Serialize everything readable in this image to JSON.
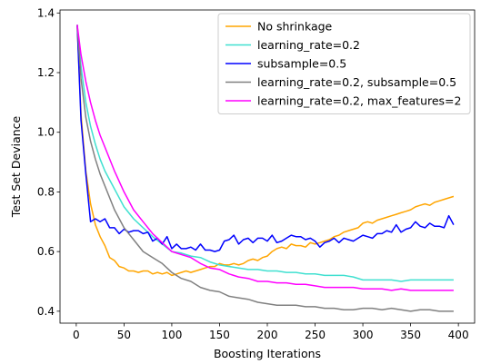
{
  "chart_data": {
    "type": "line",
    "xlabel": "Boosting Iterations",
    "ylabel": "Test Set Deviance",
    "xlim": [
      -17,
      417
    ],
    "ylim": [
      0.36,
      1.41
    ],
    "xticks": [
      0,
      50,
      100,
      150,
      200,
      250,
      300,
      350,
      400
    ],
    "yticks": [
      0.4,
      0.6,
      0.8,
      1.0,
      1.2,
      1.4
    ],
    "ytick_labels": [
      "0.4",
      "0.6",
      "0.8",
      "1.0",
      "1.2",
      "1.4"
    ],
    "grid": false,
    "legend_position": "top-right",
    "series": [
      {
        "name": "No shrinkage",
        "color": "#ffa500",
        "x": [
          1,
          5,
          10,
          15,
          20,
          25,
          30,
          35,
          40,
          45,
          50,
          55,
          60,
          65,
          70,
          75,
          80,
          85,
          90,
          95,
          100,
          105,
          110,
          115,
          120,
          125,
          130,
          135,
          140,
          145,
          150,
          155,
          160,
          165,
          170,
          175,
          180,
          185,
          190,
          195,
          200,
          205,
          210,
          215,
          220,
          225,
          230,
          235,
          240,
          245,
          250,
          255,
          260,
          265,
          270,
          275,
          280,
          285,
          290,
          295,
          300,
          305,
          310,
          315,
          320,
          325,
          330,
          335,
          340,
          345,
          350,
          355,
          360,
          365,
          370,
          375,
          380,
          385,
          390,
          395
        ],
        "values": [
          1.36,
          1.06,
          0.87,
          0.76,
          0.69,
          0.65,
          0.62,
          0.58,
          0.57,
          0.55,
          0.545,
          0.535,
          0.535,
          0.53,
          0.535,
          0.535,
          0.525,
          0.53,
          0.525,
          0.53,
          0.52,
          0.525,
          0.53,
          0.535,
          0.53,
          0.535,
          0.54,
          0.545,
          0.55,
          0.55,
          0.56,
          0.555,
          0.555,
          0.56,
          0.555,
          0.56,
          0.57,
          0.575,
          0.57,
          0.58,
          0.585,
          0.6,
          0.61,
          0.615,
          0.61,
          0.625,
          0.62,
          0.62,
          0.615,
          0.63,
          0.625,
          0.63,
          0.635,
          0.64,
          0.65,
          0.655,
          0.665,
          0.67,
          0.675,
          0.68,
          0.695,
          0.7,
          0.695,
          0.705,
          0.71,
          0.715,
          0.72,
          0.725,
          0.73,
          0.735,
          0.74,
          0.75,
          0.755,
          0.76,
          0.755,
          0.765,
          0.77,
          0.775,
          0.78,
          0.785
        ]
      },
      {
        "name": "learning_rate=0.2",
        "color": "#40e0d0",
        "x": [
          1,
          5,
          10,
          15,
          20,
          25,
          30,
          40,
          50,
          60,
          70,
          80,
          90,
          100,
          110,
          120,
          130,
          140,
          150,
          160,
          170,
          180,
          190,
          200,
          210,
          220,
          230,
          240,
          250,
          260,
          270,
          280,
          290,
          300,
          310,
          320,
          330,
          340,
          350,
          360,
          370,
          380,
          390,
          395
        ],
        "values": [
          1.36,
          1.22,
          1.1,
          1.02,
          0.96,
          0.91,
          0.87,
          0.81,
          0.75,
          0.71,
          0.68,
          0.65,
          0.625,
          0.6,
          0.595,
          0.585,
          0.58,
          0.565,
          0.555,
          0.55,
          0.545,
          0.54,
          0.54,
          0.535,
          0.535,
          0.53,
          0.53,
          0.525,
          0.525,
          0.52,
          0.52,
          0.52,
          0.515,
          0.505,
          0.505,
          0.505,
          0.505,
          0.5,
          0.505,
          0.505,
          0.505,
          0.505,
          0.505,
          0.505
        ]
      },
      {
        "name": "subsample=0.5",
        "color": "#0000ff",
        "x": [
          1,
          5,
          10,
          15,
          20,
          25,
          30,
          35,
          40,
          45,
          50,
          55,
          60,
          65,
          70,
          75,
          80,
          85,
          90,
          95,
          100,
          105,
          110,
          115,
          120,
          125,
          130,
          135,
          140,
          145,
          150,
          155,
          160,
          165,
          170,
          175,
          180,
          185,
          190,
          195,
          200,
          205,
          210,
          215,
          220,
          225,
          230,
          235,
          240,
          245,
          250,
          255,
          260,
          265,
          270,
          275,
          280,
          285,
          290,
          295,
          300,
          305,
          310,
          315,
          320,
          325,
          330,
          335,
          340,
          345,
          350,
          355,
          360,
          365,
          370,
          375,
          380,
          385,
          390,
          395
        ],
        "values": [
          1.36,
          1.04,
          0.86,
          0.7,
          0.71,
          0.7,
          0.71,
          0.68,
          0.68,
          0.66,
          0.675,
          0.665,
          0.67,
          0.67,
          0.66,
          0.665,
          0.635,
          0.645,
          0.625,
          0.65,
          0.61,
          0.625,
          0.61,
          0.61,
          0.615,
          0.605,
          0.625,
          0.605,
          0.605,
          0.6,
          0.605,
          0.635,
          0.64,
          0.655,
          0.625,
          0.64,
          0.645,
          0.63,
          0.645,
          0.645,
          0.635,
          0.655,
          0.63,
          0.635,
          0.645,
          0.655,
          0.65,
          0.65,
          0.64,
          0.645,
          0.635,
          0.615,
          0.63,
          0.635,
          0.645,
          0.63,
          0.645,
          0.64,
          0.635,
          0.645,
          0.655,
          0.65,
          0.645,
          0.66,
          0.66,
          0.67,
          0.665,
          0.69,
          0.665,
          0.675,
          0.68,
          0.7,
          0.685,
          0.68,
          0.695,
          0.685,
          0.685,
          0.68,
          0.72,
          0.69
        ]
      },
      {
        "name": "learning_rate=0.2, subsample=0.5",
        "color": "#808080",
        "x": [
          1,
          5,
          10,
          15,
          20,
          25,
          30,
          40,
          50,
          60,
          70,
          80,
          90,
          100,
          110,
          120,
          130,
          140,
          150,
          160,
          170,
          180,
          190,
          200,
          210,
          220,
          230,
          240,
          250,
          260,
          270,
          280,
          290,
          300,
          310,
          320,
          330,
          340,
          350,
          360,
          370,
          380,
          390,
          395
        ],
        "values": [
          1.36,
          1.18,
          1.05,
          0.97,
          0.91,
          0.86,
          0.82,
          0.74,
          0.68,
          0.64,
          0.6,
          0.58,
          0.56,
          0.53,
          0.51,
          0.5,
          0.48,
          0.47,
          0.465,
          0.45,
          0.445,
          0.44,
          0.43,
          0.425,
          0.42,
          0.42,
          0.42,
          0.415,
          0.415,
          0.41,
          0.41,
          0.405,
          0.405,
          0.41,
          0.41,
          0.405,
          0.41,
          0.405,
          0.4,
          0.405,
          0.405,
          0.4,
          0.4,
          0.4
        ]
      },
      {
        "name": "learning_rate=0.2, max_features=2",
        "color": "#ff00ff",
        "x": [
          1,
          5,
          10,
          15,
          20,
          25,
          30,
          40,
          50,
          60,
          70,
          80,
          90,
          100,
          110,
          120,
          130,
          140,
          150,
          160,
          170,
          180,
          190,
          200,
          210,
          220,
          230,
          240,
          250,
          260,
          270,
          280,
          290,
          300,
          310,
          320,
          330,
          340,
          350,
          360,
          370,
          380,
          390,
          395
        ],
        "values": [
          1.36,
          1.26,
          1.17,
          1.1,
          1.04,
          0.99,
          0.95,
          0.87,
          0.8,
          0.74,
          0.7,
          0.66,
          0.63,
          0.6,
          0.59,
          0.58,
          0.56,
          0.545,
          0.54,
          0.525,
          0.515,
          0.51,
          0.5,
          0.5,
          0.495,
          0.495,
          0.49,
          0.49,
          0.485,
          0.48,
          0.48,
          0.48,
          0.48,
          0.475,
          0.475,
          0.475,
          0.47,
          0.475,
          0.47,
          0.47,
          0.47,
          0.47,
          0.47,
          0.47
        ]
      }
    ]
  }
}
